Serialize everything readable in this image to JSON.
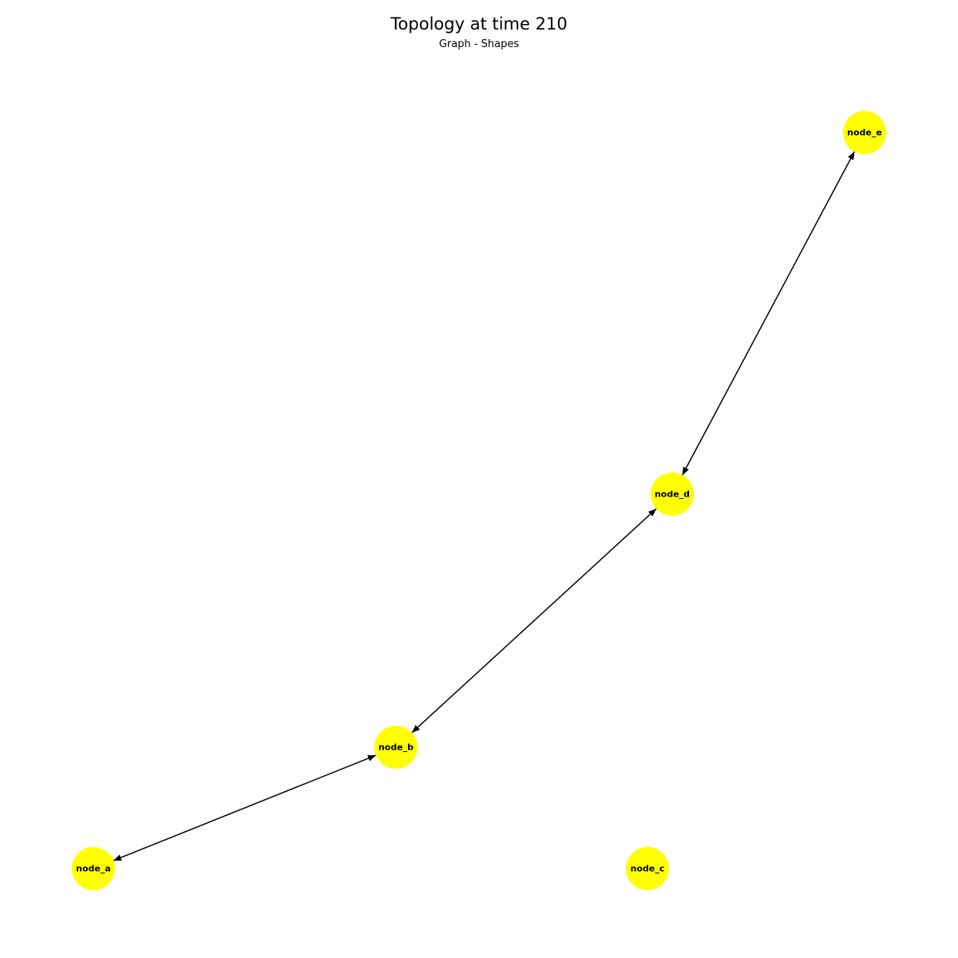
{
  "header": {
    "title": "Topology at time 210",
    "subtitle": "Graph - Shapes"
  },
  "graph": {
    "node_color": "#ffff00",
    "edge_color": "#000000",
    "label_color": "#000000",
    "directed": true,
    "nodes": [
      {
        "id": "node_a",
        "label": "node_a"
      },
      {
        "id": "node_b",
        "label": "node_b"
      },
      {
        "id": "node_c",
        "label": "node_c"
      },
      {
        "id": "node_d",
        "label": "node_d"
      },
      {
        "id": "node_e",
        "label": "node_e"
      }
    ],
    "edges": [
      {
        "source": "node_a",
        "target": "node_b",
        "arrows": "both"
      },
      {
        "source": "node_b",
        "target": "node_d",
        "arrows": "both"
      },
      {
        "source": "node_d",
        "target": "node_e",
        "arrows": "both"
      }
    ]
  }
}
